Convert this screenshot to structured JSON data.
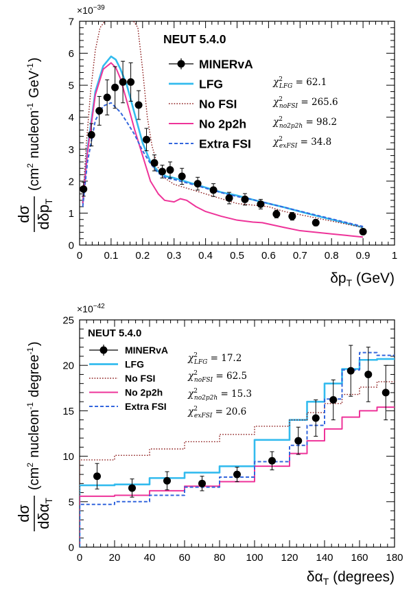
{
  "chart_data": [
    {
      "type": "line",
      "title": "NEUT 5.4.0",
      "xlabel": "δp_T (GeV)",
      "ylabel": "dσ/dδp_T (cm² nucleon⁻¹ GeV⁻¹)",
      "exponent_label": "×10⁻³⁹",
      "xlim": [
        0,
        1
      ],
      "ylim": [
        0,
        7
      ],
      "xticks": [
        0,
        0.1,
        0.2,
        0.3,
        0.4,
        0.5,
        0.6,
        0.7,
        0.8,
        0.9,
        1
      ],
      "xtick_labels": [
        "0",
        "0.1",
        "0.2",
        "0.3",
        "0.4",
        "0.5",
        "0.6",
        "0.7",
        "0.8",
        "0.9",
        "1"
      ],
      "yticks": [
        0,
        1,
        2,
        3,
        4,
        5,
        6,
        7
      ],
      "ytick_labels": [
        "0",
        "1",
        "2",
        "3",
        "4",
        "5",
        "6",
        "7"
      ],
      "legend_position": "top-right",
      "data_points": {
        "name": "MINERvA",
        "x": [
          0.0125,
          0.0375,
          0.0625,
          0.0875,
          0.1125,
          0.1375,
          0.1625,
          0.1875,
          0.2125,
          0.2375,
          0.2625,
          0.2875,
          0.325,
          0.375,
          0.425,
          0.475,
          0.525,
          0.575,
          0.625,
          0.675,
          0.75,
          0.9
        ],
        "y": [
          1.75,
          3.45,
          4.2,
          4.62,
          4.93,
          5.1,
          5.1,
          4.38,
          3.3,
          2.57,
          2.3,
          2.35,
          2.15,
          1.92,
          1.72,
          1.47,
          1.43,
          1.28,
          0.97,
          0.9,
          0.7,
          0.42
        ],
        "err": [
          0.22,
          0.35,
          0.45,
          0.55,
          0.65,
          0.65,
          0.6,
          0.45,
          0.35,
          0.25,
          0.2,
          0.25,
          0.25,
          0.2,
          0.2,
          0.18,
          0.18,
          0.15,
          0.12,
          0.12,
          0.1,
          0.08
        ]
      },
      "series": [
        {
          "name": "LFG",
          "color": "#33bbee",
          "style": "solid",
          "x": [
            0.01,
            0.025,
            0.05,
            0.075,
            0.1,
            0.115,
            0.13,
            0.15,
            0.175,
            0.2,
            0.225,
            0.25,
            0.275,
            0.3,
            0.35,
            0.4,
            0.45,
            0.5,
            0.55,
            0.6,
            0.65,
            0.7,
            0.75,
            0.8,
            0.85,
            0.9
          ],
          "y": [
            1.3,
            3.0,
            4.8,
            5.6,
            5.9,
            5.8,
            5.5,
            5.0,
            4.1,
            3.2,
            2.6,
            2.3,
            2.15,
            2.1,
            1.95,
            1.8,
            1.65,
            1.55,
            1.42,
            1.3,
            1.18,
            1.05,
            0.92,
            0.8,
            0.68,
            0.55
          ]
        },
        {
          "name": "No FSI",
          "color": "#8b1a1a",
          "style": "dotted",
          "x": [
            0.01,
            0.02,
            0.035,
            0.05,
            0.065,
            0.08,
            0.095,
            0.165,
            0.185,
            0.2,
            0.215,
            0.23,
            0.25,
            0.27,
            0.3,
            0.35,
            0.4,
            0.45,
            0.5,
            0.55,
            0.6,
            0.65,
            0.7,
            0.75,
            0.8,
            0.85,
            0.9
          ],
          "y": [
            1.3,
            3.0,
            4.8,
            6.1,
            6.8,
            7.0,
            7.1,
            7.1,
            6.8,
            5.5,
            4.0,
            3.1,
            2.4,
            2.1,
            1.9,
            1.75,
            1.6,
            1.45,
            1.3,
            1.25,
            1.2,
            1.05,
            0.95,
            0.85,
            0.75,
            0.65,
            0.55
          ]
        },
        {
          "name": "No 2p2h",
          "color": "#ee3399",
          "style": "solid",
          "x": [
            0.01,
            0.025,
            0.05,
            0.075,
            0.1,
            0.115,
            0.13,
            0.15,
            0.175,
            0.2,
            0.225,
            0.25,
            0.27,
            0.3,
            0.32,
            0.34,
            0.37,
            0.4,
            0.45,
            0.5,
            0.55,
            0.58,
            0.65,
            0.7,
            0.75,
            0.8,
            0.85,
            0.9
          ],
          "y": [
            1.3,
            2.9,
            4.7,
            5.5,
            5.7,
            5.55,
            5.2,
            4.5,
            3.6,
            2.8,
            2.0,
            1.6,
            1.4,
            1.35,
            1.45,
            1.4,
            1.2,
            1.05,
            0.9,
            0.78,
            0.72,
            0.7,
            0.55,
            0.45,
            0.4,
            0.35,
            0.3,
            0.25
          ]
        },
        {
          "name": "Extra FSI",
          "color": "#3366dd",
          "style": "dashed",
          "x": [
            0.01,
            0.025,
            0.05,
            0.075,
            0.1,
            0.115,
            0.13,
            0.15,
            0.175,
            0.2,
            0.225,
            0.25,
            0.275,
            0.3,
            0.35,
            0.4,
            0.45,
            0.5,
            0.55,
            0.6,
            0.65,
            0.7,
            0.75,
            0.8,
            0.85,
            0.9
          ],
          "y": [
            1.2,
            2.6,
            3.9,
            4.35,
            4.45,
            4.3,
            4.15,
            3.85,
            3.45,
            2.95,
            2.55,
            2.25,
            2.1,
            2.05,
            1.92,
            1.78,
            1.64,
            1.52,
            1.42,
            1.3,
            1.18,
            1.06,
            0.94,
            0.82,
            0.7,
            0.58
          ]
        }
      ],
      "chi2": [
        {
          "sub": "LFG",
          "value": "62.1"
        },
        {
          "sub": "noFSI",
          "value": "265.6"
        },
        {
          "sub": "no2p2h",
          "value": "98.2"
        },
        {
          "sub": "exFSI",
          "value": "34.8"
        }
      ]
    },
    {
      "type": "line",
      "title": "NEUT 5.4.0",
      "xlabel": "δα_T (degrees)",
      "ylabel": "dσ/dδα_T (cm² nucleon⁻¹ degree⁻¹)",
      "exponent_label": "×10⁻⁴²",
      "xlim": [
        0,
        180
      ],
      "ylim": [
        0,
        25
      ],
      "xticks": [
        0,
        20,
        40,
        60,
        80,
        100,
        120,
        140,
        160,
        180
      ],
      "xtick_labels": [
        "0",
        "20",
        "40",
        "60",
        "80",
        "100",
        "120",
        "140",
        "160",
        "180"
      ],
      "yticks": [
        0,
        5,
        10,
        15,
        20,
        25
      ],
      "ytick_labels": [
        "0",
        "5",
        "10",
        "15",
        "20",
        "25"
      ],
      "legend_position": "top-left",
      "bin_edges": [
        0,
        20,
        40,
        60,
        80,
        100,
        120,
        130,
        140,
        150,
        160,
        170,
        180
      ],
      "data_points": {
        "name": "MINERvA",
        "x": [
          10,
          30,
          50,
          70,
          90,
          110,
          125,
          135,
          145,
          155,
          165,
          175
        ],
        "y": [
          7.8,
          6.5,
          7.3,
          7.0,
          8.0,
          9.5,
          11.7,
          14.2,
          16.2,
          19.4,
          19.0,
          17.0
        ],
        "err": [
          1.4,
          1.0,
          1.0,
          0.8,
          0.8,
          1.0,
          1.5,
          2.0,
          2.2,
          2.8,
          3.0,
          3.0
        ]
      },
      "series": [
        {
          "name": "LFG",
          "color": "#33bbee",
          "style": "solid",
          "values": [
            6.8,
            6.9,
            7.6,
            8.2,
            8.9,
            11.8,
            14.0,
            16.0,
            18.0,
            19.6,
            20.6,
            20.7
          ]
        },
        {
          "name": "No FSI",
          "color": "#8b1a1a",
          "style": "dotted",
          "values": [
            9.6,
            10.1,
            10.8,
            11.6,
            12.4,
            13.3,
            14.0,
            14.8,
            15.8,
            16.8,
            17.6,
            18.2
          ]
        },
        {
          "name": "No 2p2h",
          "color": "#ee3399",
          "style": "solid",
          "values": [
            5.6,
            5.7,
            6.2,
            6.7,
            7.2,
            8.9,
            10.3,
            11.7,
            13.0,
            14.3,
            15.0,
            15.4
          ]
        },
        {
          "name": "Extra FSI",
          "color": "#3366dd",
          "style": "dashed",
          "values": [
            4.7,
            5.0,
            5.7,
            6.6,
            7.7,
            9.4,
            11.2,
            13.4,
            16.3,
            19.5,
            21.4,
            21.1
          ]
        }
      ],
      "chi2": [
        {
          "sub": "LFG",
          "value": "17.2"
        },
        {
          "sub": "noFSI",
          "value": "62.5"
        },
        {
          "sub": "no2p2h",
          "value": "15.3"
        },
        {
          "sub": "exFSI",
          "value": "20.6"
        }
      ]
    }
  ]
}
